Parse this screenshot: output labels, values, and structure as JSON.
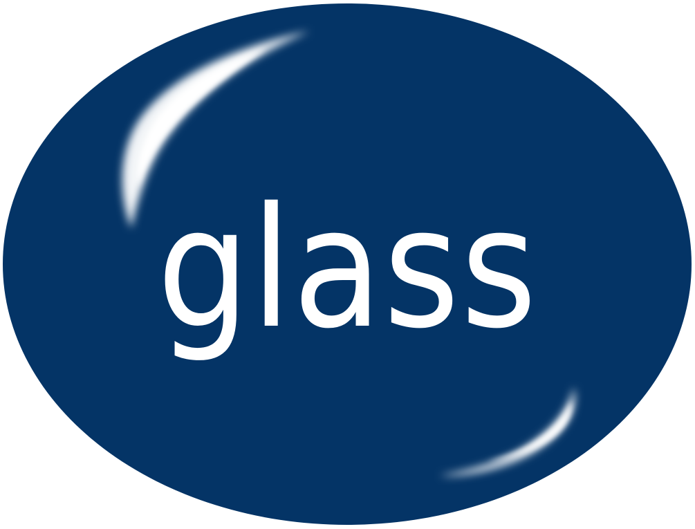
{
  "label": {
    "text": "glass"
  },
  "colors": {
    "oval_fill": "#043466",
    "text": "#ffffff",
    "highlight": "#ffffff",
    "background": "#ffffff"
  }
}
